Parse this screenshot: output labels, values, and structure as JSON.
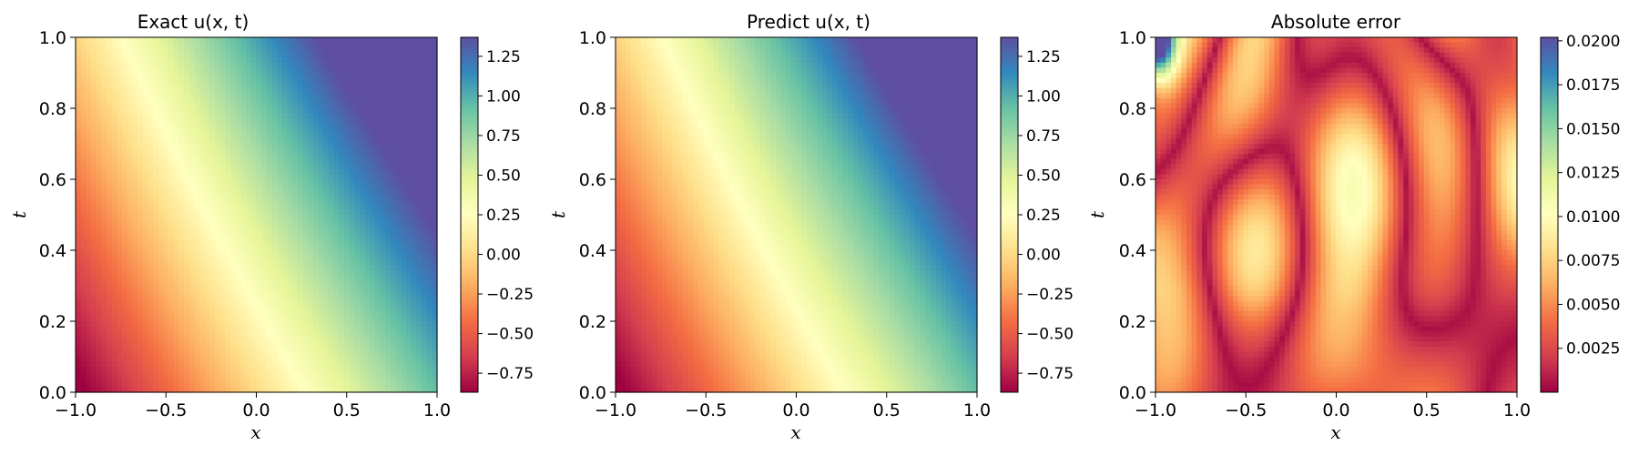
{
  "colormap": "Spectral",
  "chart_data": [
    {
      "type": "heatmap",
      "title": "Exact u(x, t)",
      "xlabel": "x",
      "ylabel": "t",
      "xlim": [
        -1.0,
        1.0
      ],
      "ylim": [
        0.0,
        1.0
      ],
      "xticks": [
        "−1.0",
        "−0.5",
        "0.0",
        "0.5",
        "1.0"
      ],
      "yticks": [
        "0.0",
        "0.2",
        "0.4",
        "0.6",
        "0.8",
        "1.0"
      ],
      "colorbar": {
        "range": [
          -0.87,
          1.37
        ],
        "ticks": [
          -0.75,
          -0.5,
          -0.25,
          0.0,
          0.25,
          0.5,
          0.75,
          1.0,
          1.25
        ],
        "tick_labels": [
          "−0.75",
          "−0.50",
          "−0.25",
          "0.00",
          "0.25",
          "0.50",
          "0.75",
          "1.00",
          "1.25"
        ]
      },
      "field_corner_values": {
        "x=-1,t=0": -0.87,
        "x=-1,t=1": 0.25,
        "x=1,t=0": 0.75,
        "x=1,t=1": 1.2,
        "x=0.5,t=1": 1.37
      }
    },
    {
      "type": "heatmap",
      "title": "Predict u(x, t)",
      "xlabel": "x",
      "ylabel": "t",
      "xlim": [
        -1.0,
        1.0
      ],
      "ylim": [
        0.0,
        1.0
      ],
      "xticks": [
        "−1.0",
        "−0.5",
        "0.0",
        "0.5",
        "1.0"
      ],
      "yticks": [
        "0.0",
        "0.2",
        "0.4",
        "0.6",
        "0.8",
        "1.0"
      ],
      "colorbar": {
        "range": [
          -0.87,
          1.37
        ],
        "ticks": [
          -0.75,
          -0.5,
          -0.25,
          0.0,
          0.25,
          0.5,
          0.75,
          1.0,
          1.25
        ],
        "tick_labels": [
          "−0.75",
          "−0.50",
          "−0.25",
          "0.00",
          "0.25",
          "0.50",
          "0.75",
          "1.00",
          "1.25"
        ]
      },
      "field_corner_values": {
        "x=-1,t=0": -0.87,
        "x=-1,t=1": 0.25,
        "x=1,t=0": 0.75,
        "x=1,t=1": 1.2,
        "x=0.5,t=1": 1.37
      }
    },
    {
      "type": "heatmap",
      "title": "Absolute error",
      "xlabel": "x",
      "ylabel": "t",
      "xlim": [
        -1.0,
        1.0
      ],
      "ylim": [
        0.0,
        1.0
      ],
      "xticks": [
        "−1.0",
        "−0.5",
        "0.0",
        "0.5",
        "1.0"
      ],
      "yticks": [
        "0.0",
        "0.2",
        "0.4",
        "0.6",
        "0.8",
        "1.0"
      ],
      "colorbar": {
        "range": [
          0.0,
          0.0202
        ],
        "ticks": [
          0.0025,
          0.005,
          0.0075,
          0.01,
          0.0125,
          0.015,
          0.0175,
          0.02
        ],
        "tick_labels": [
          "0.0025",
          "0.0050",
          "0.0075",
          "0.0100",
          "0.0125",
          "0.0150",
          "0.0175",
          "0.0200"
        ]
      },
      "max_error_location": {
        "x": -1.0,
        "t": 1.0,
        "value": 0.0202
      }
    }
  ]
}
